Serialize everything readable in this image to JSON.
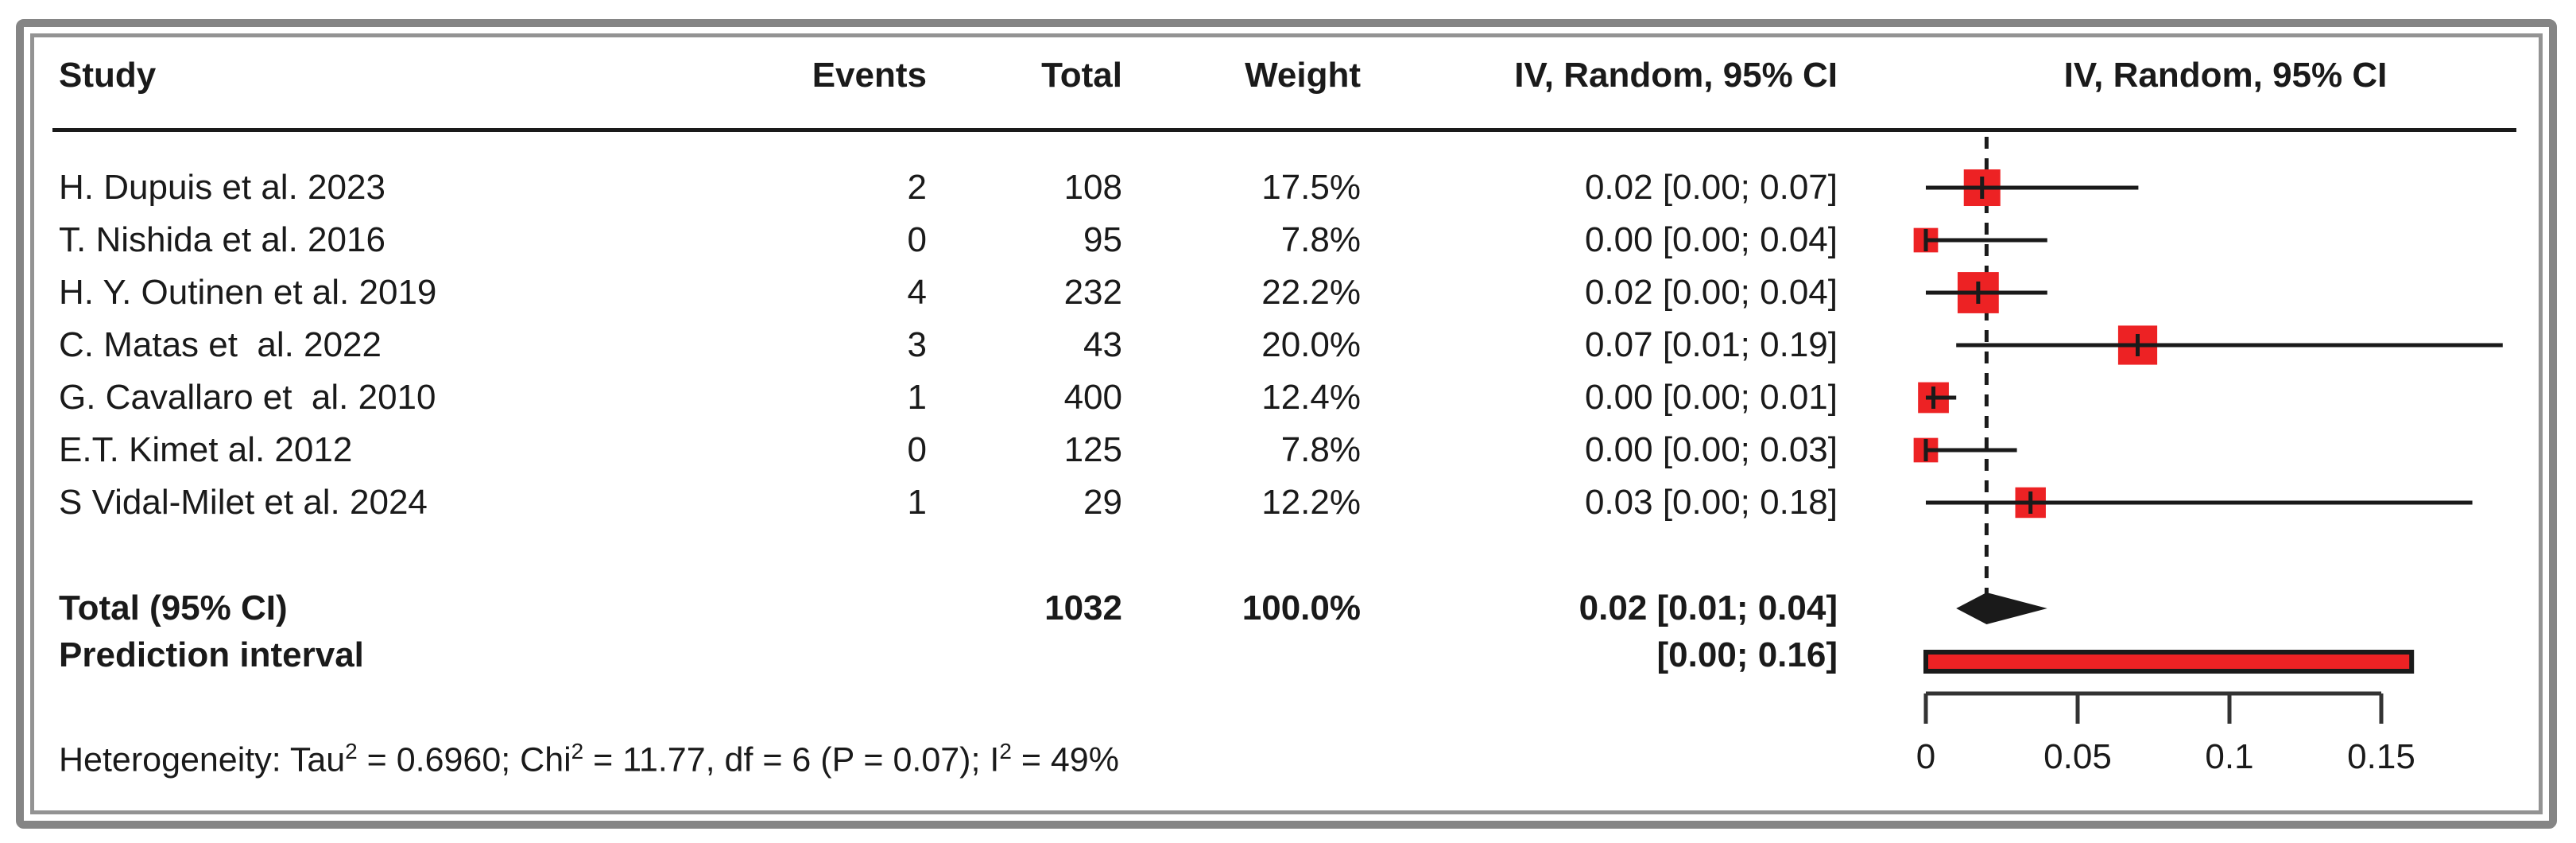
{
  "figure": {
    "columns": {
      "study": "Study",
      "events": "Events",
      "total": "Total",
      "weight": "Weight",
      "ci": "IV, Random, 95% CI",
      "plot": "IV, Random, 95% CI"
    }
  },
  "colors": {
    "square": "#ED2224",
    "prediction_fill": "#ED2224",
    "line": "#1a1a1a",
    "axis": "#333333",
    "diamond": "#1a1a1a"
  },
  "chart_data": {
    "type": "forest",
    "effect_measure_label": "IV, Random, 95% CI",
    "studies": [
      {
        "study": "H. Dupuis et al. 2023",
        "events": 2,
        "total": 108,
        "weight": "17.5%",
        "weight_pct": 17.5,
        "ci_text": "0.02 [0.00; 0.07]",
        "estimate": 0.02,
        "ci_low": 0.0,
        "ci_high": 0.07
      },
      {
        "study": "T. Nishida et al. 2016",
        "events": 0,
        "total": 95,
        "weight": "7.8%",
        "weight_pct": 7.8,
        "ci_text": "0.00 [0.00; 0.04]",
        "estimate": 0.0,
        "ci_low": 0.0,
        "ci_high": 0.04
      },
      {
        "study": "H. Y. Outinen et al. 2019",
        "events": 4,
        "total": 232,
        "weight": "22.2%",
        "weight_pct": 22.2,
        "ci_text": "0.02 [0.00; 0.04]",
        "estimate": 0.02,
        "ci_low": 0.0,
        "ci_high": 0.04
      },
      {
        "study": "C. Matas et  al. 2022",
        "events": 3,
        "total": 43,
        "weight": "20.0%",
        "weight_pct": 20.0,
        "ci_text": "0.07 [0.01; 0.19]",
        "estimate": 0.07,
        "ci_low": 0.01,
        "ci_high": 0.19
      },
      {
        "study": "G. Cavallaro et  al. 2010",
        "events": 1,
        "total": 400,
        "weight": "12.4%",
        "weight_pct": 12.4,
        "ci_text": "0.00 [0.00; 0.01]",
        "estimate": 0.0,
        "ci_low": 0.0,
        "ci_high": 0.01
      },
      {
        "study": "E.T. Kimet al. 2012",
        "events": 0,
        "total": 125,
        "weight": "7.8%",
        "weight_pct": 7.8,
        "ci_text": "0.00 [0.00; 0.03]",
        "estimate": 0.0,
        "ci_low": 0.0,
        "ci_high": 0.03
      },
      {
        "study": "S Vidal-Milet et al. 2024",
        "events": 1,
        "total": 29,
        "weight": "12.2%",
        "weight_pct": 12.2,
        "ci_text": "0.03 [0.00; 0.18]",
        "estimate": 0.03,
        "ci_low": 0.0,
        "ci_high": 0.18
      }
    ],
    "total_row": {
      "label": "Total (95% CI)",
      "total": 1032,
      "weight": "100.0%",
      "ci_text": "0.02 [0.01; 0.04]",
      "estimate": 0.02,
      "ci_low": 0.01,
      "ci_high": 0.04
    },
    "prediction_row": {
      "label": "Prediction interval",
      "ci_text": "[0.00; 0.16]",
      "ci_low": 0.0,
      "ci_high": 0.16
    },
    "axis": {
      "ticks": [
        0,
        0.05,
        0.1,
        0.15
      ],
      "tick_labels": [
        "0",
        "0.05",
        "0.1",
        "0.15"
      ],
      "xmin": 0,
      "xmax": 0.19
    },
    "heterogeneity_segments": [
      {
        "t": "Heterogeneity: Tau"
      },
      {
        "t": "2",
        "sup": true
      },
      {
        "t": " = 0.6960; Chi"
      },
      {
        "t": "2",
        "sup": true
      },
      {
        "t": " = 11.77, df = 6 (P = 0.07); I"
      },
      {
        "t": "2",
        "sup": true
      },
      {
        "t": " = 49%"
      }
    ]
  }
}
